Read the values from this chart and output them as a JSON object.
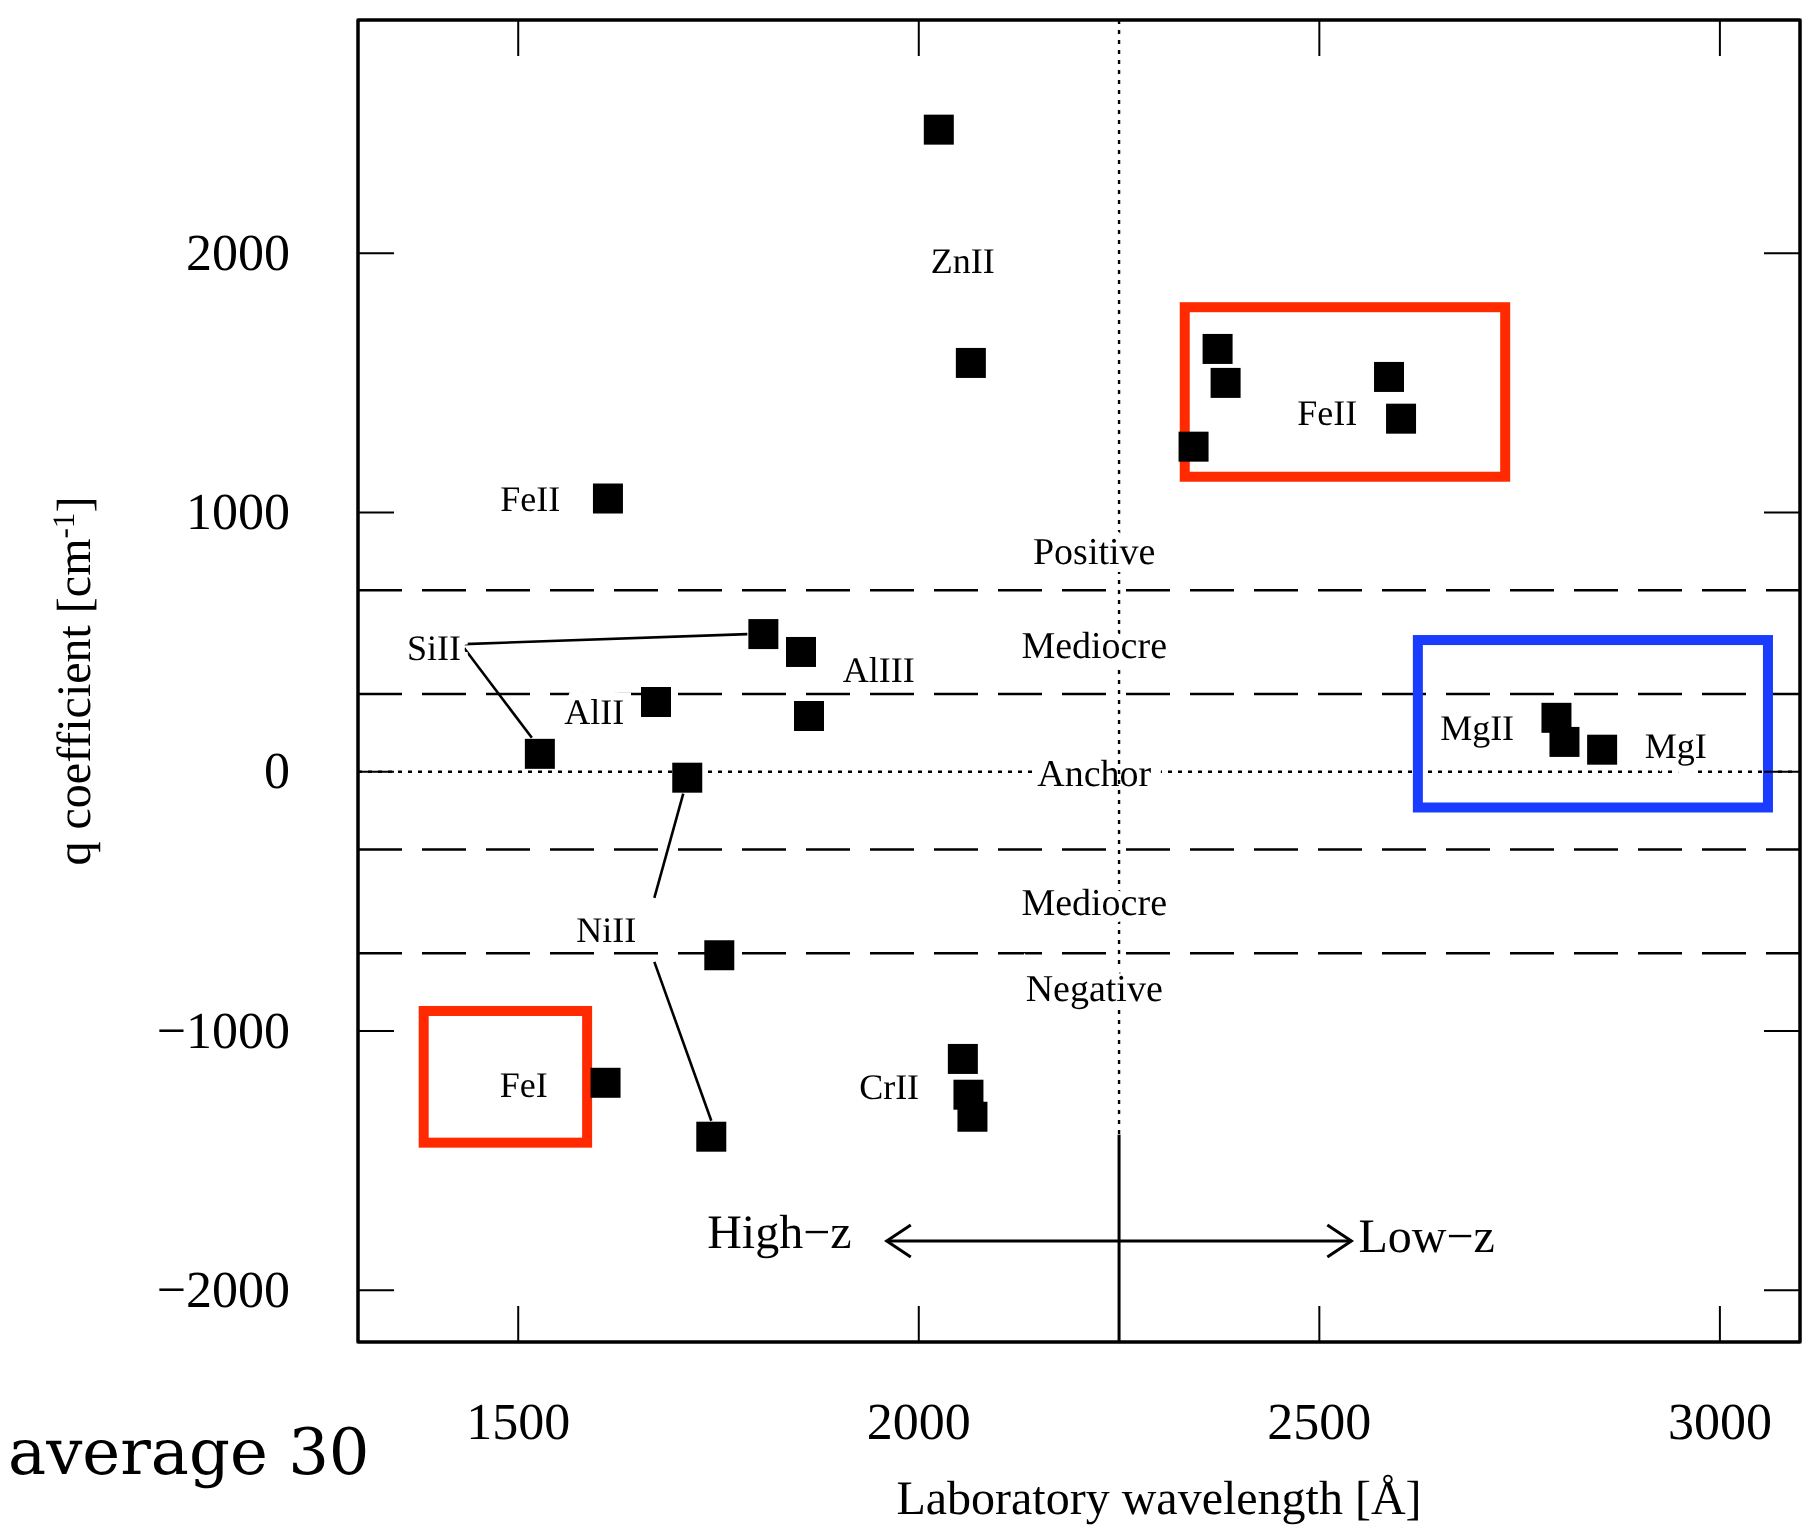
{
  "chart_data": {
    "type": "scatter",
    "xlabel": "Laboratory wavelength [Å]",
    "ylabel": "q coefficient [cm$^{-1}$]",
    "xlim": [
      1300,
      3100
    ],
    "ylim": [
      -2200,
      2900
    ],
    "xticks": [
      1500,
      2000,
      2500,
      3000
    ],
    "yticks": [
      -2000,
      -1000,
      0,
      1000,
      2000
    ],
    "marker": "square",
    "grid": false,
    "series": [
      {
        "color": "#000000",
        "x": [
          2025,
          2065,
          2373,
          2383,
          2343,
          2587,
          2602,
          1612,
          1527,
          1672,
          1806,
          1853,
          1863,
          1711,
          1751,
          1741,
          1609,
          2055,
          2062,
          2067,
          2796,
          2806,
          2853
        ],
        "values": [
          2477,
          1577,
          1631,
          1500,
          1254,
          1523,
          1362,
          1054,
          69,
          269,
          531,
          462,
          215,
          -23,
          -708,
          -1408,
          -1200,
          -1108,
          -1246,
          -1331,
          208,
          115,
          85
        ]
      }
    ],
    "ref_lines": [
      {
        "axis": "y",
        "value": 700,
        "line_style": "dashed"
      },
      {
        "axis": "y",
        "value": 300,
        "line_style": "dashed"
      },
      {
        "axis": "y",
        "value": 0,
        "line_style": "dotted",
        "label": "Anchor"
      },
      {
        "axis": "y",
        "value": -300,
        "line_style": "dashed"
      },
      {
        "axis": "y",
        "value": -700,
        "line_style": "dashed"
      },
      {
        "axis": "x",
        "value": 2250,
        "line_style": "dotted"
      }
    ],
    "annotations": [
      "ZnII",
      "FeII",
      "FeII",
      {
        "text": "SiII",
        "x": 1527,
        "y": 69
      },
      "AlII",
      "AlIII",
      {
        "text": "NiII",
        "x": 1711,
        "y": -23
      },
      "FeI",
      "CrII",
      "MgII",
      "MgI",
      "Positive",
      "Mediocre",
      "Mediocre",
      "Negative",
      "High−z",
      "Low−z",
      "average 30"
    ]
  }
}
